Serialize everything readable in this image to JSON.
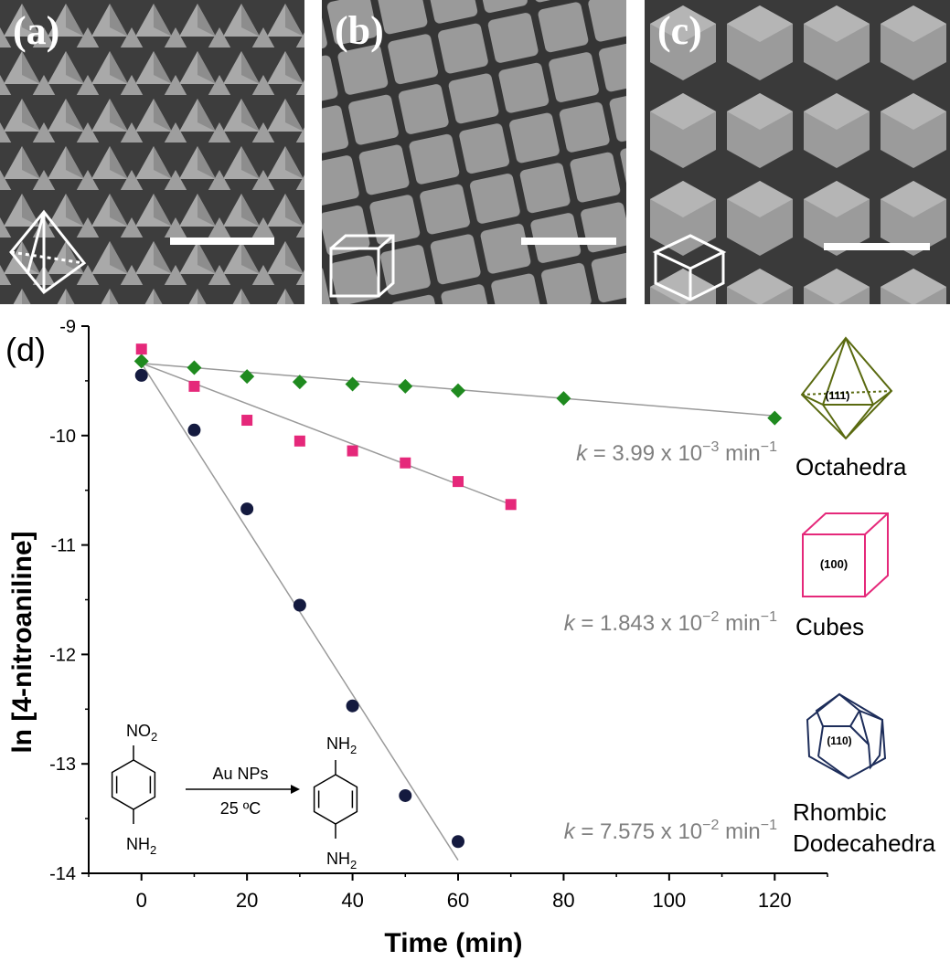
{
  "panels": [
    {
      "label": "(a)",
      "shape": "octahedron-sem",
      "wireframe_icon": "octahedron-icon"
    },
    {
      "label": "(b)",
      "shape": "cube-sem",
      "wireframe_icon": "cube-icon"
    },
    {
      "label": "(c)",
      "shape": "rhombic-dodecahedron-sem",
      "wireframe_icon": "rhombic-dodecahedron-icon"
    }
  ],
  "chart_panel_label": "(d)",
  "chart_data": {
    "type": "scatter",
    "title": "",
    "xlabel": "Time (min)",
    "ylabel": "ln [4-nitroaniline]",
    "xlim": [
      -10,
      130
    ],
    "ylim": [
      -14,
      -9
    ],
    "xticks": [
      0,
      20,
      40,
      60,
      80,
      100,
      120
    ],
    "yticks": [
      -14,
      -13,
      -12,
      -11,
      -10,
      -9
    ],
    "xtick_labels": [
      "0",
      "20",
      "40",
      "60",
      "80",
      "100",
      "120"
    ],
    "ytick_labels": [
      "-14",
      "-13",
      "-12",
      "-11",
      "-10",
      "-9"
    ],
    "grid": false,
    "series": [
      {
        "name": "Octahedra",
        "marker": "diamond",
        "color": "#1f8a1f",
        "x": [
          0,
          10,
          20,
          30,
          40,
          50,
          60,
          80,
          120
        ],
        "y": [
          -9.32,
          -9.38,
          -9.46,
          -9.51,
          -9.53,
          -9.55,
          -9.59,
          -9.66,
          -9.84
        ],
        "fit": {
          "x": [
            0,
            120
          ],
          "y": [
            -9.34,
            -9.82
          ]
        },
        "rate_label": {
          "k": "k",
          "text": " = 3.99 x 10",
          "exp": "−3",
          "unit": " min",
          "unit_exp": "−1"
        },
        "facet": "(111)"
      },
      {
        "name": "Cubes",
        "marker": "square",
        "color": "#e5287a",
        "x": [
          0,
          10,
          20,
          30,
          40,
          50,
          60,
          70
        ],
        "y": [
          -9.21,
          -9.55,
          -9.86,
          -10.05,
          -10.14,
          -10.25,
          -10.42,
          -10.63
        ],
        "fit": {
          "x": [
            0,
            70
          ],
          "y": [
            -9.34,
            -10.63
          ]
        },
        "rate_label": {
          "k": "k",
          "text": " = 1.843 x 10",
          "exp": "−2",
          "unit": " min",
          "unit_exp": "−1"
        },
        "facet": "(100)"
      },
      {
        "name": "Rhombic Dodecahedra",
        "marker": "circle",
        "color": "#141a3f",
        "x": [
          0,
          10,
          20,
          30,
          40,
          50,
          60
        ],
        "y": [
          -9.45,
          -9.95,
          -10.67,
          -11.55,
          -12.47,
          -13.29,
          -13.71
        ],
        "fit": {
          "x": [
            0,
            60
          ],
          "y": [
            -9.34,
            -13.88
          ]
        },
        "rate_label": {
          "k": "k",
          "text": " = 7.575 x 10",
          "exp": "−2",
          "unit": " min",
          "unit_exp": "−1"
        },
        "facet": "(110)"
      }
    ],
    "legend_labels": [
      "Octahedra",
      "Cubes",
      "Rhombic",
      "Dodecahedra"
    ],
    "reaction": {
      "reactant_top": "NO",
      "reactant_top_sub": "2",
      "reactant_bottom": "NH",
      "reactant_bottom_sub": "2",
      "product_top": "NH",
      "product_top_sub": "2",
      "product_bottom": "NH",
      "product_bottom_sub": "2",
      "arrow_top": "Au NPs",
      "arrow_bottom": "25 ºC"
    }
  },
  "colors": {
    "fit_line": "#9a9a9a",
    "axis": "#000000",
    "annotation": "#7f7f7f",
    "octahedron_icon": "#5a6a10",
    "cube_icon": "#e5287a",
    "dodeca_icon": "#1d2d5a"
  }
}
